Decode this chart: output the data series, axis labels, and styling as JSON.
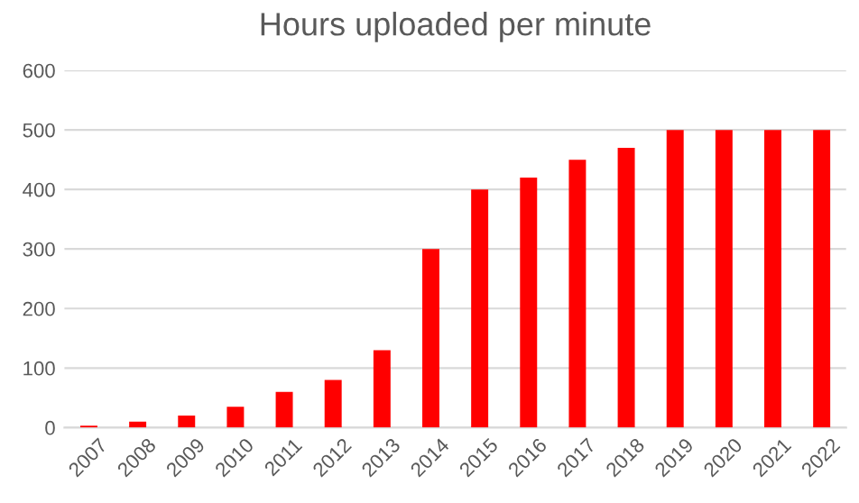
{
  "chart_data": {
    "type": "bar",
    "title": "Hours uploaded per minute",
    "categories": [
      "2007",
      "2008",
      "2009",
      "2010",
      "2011",
      "2012",
      "2013",
      "2014",
      "2015",
      "2016",
      "2017",
      "2018",
      "2019",
      "2020",
      "2021",
      "2022"
    ],
    "values": [
      3,
      10,
      20,
      35,
      60,
      80,
      130,
      300,
      400,
      420,
      450,
      470,
      500,
      500,
      500,
      500
    ],
    "color": "#ff0000",
    "ylim": [
      0,
      600
    ],
    "yticks": [
      0,
      100,
      200,
      300,
      400,
      500,
      600
    ],
    "grid": "y",
    "legend": false
  }
}
